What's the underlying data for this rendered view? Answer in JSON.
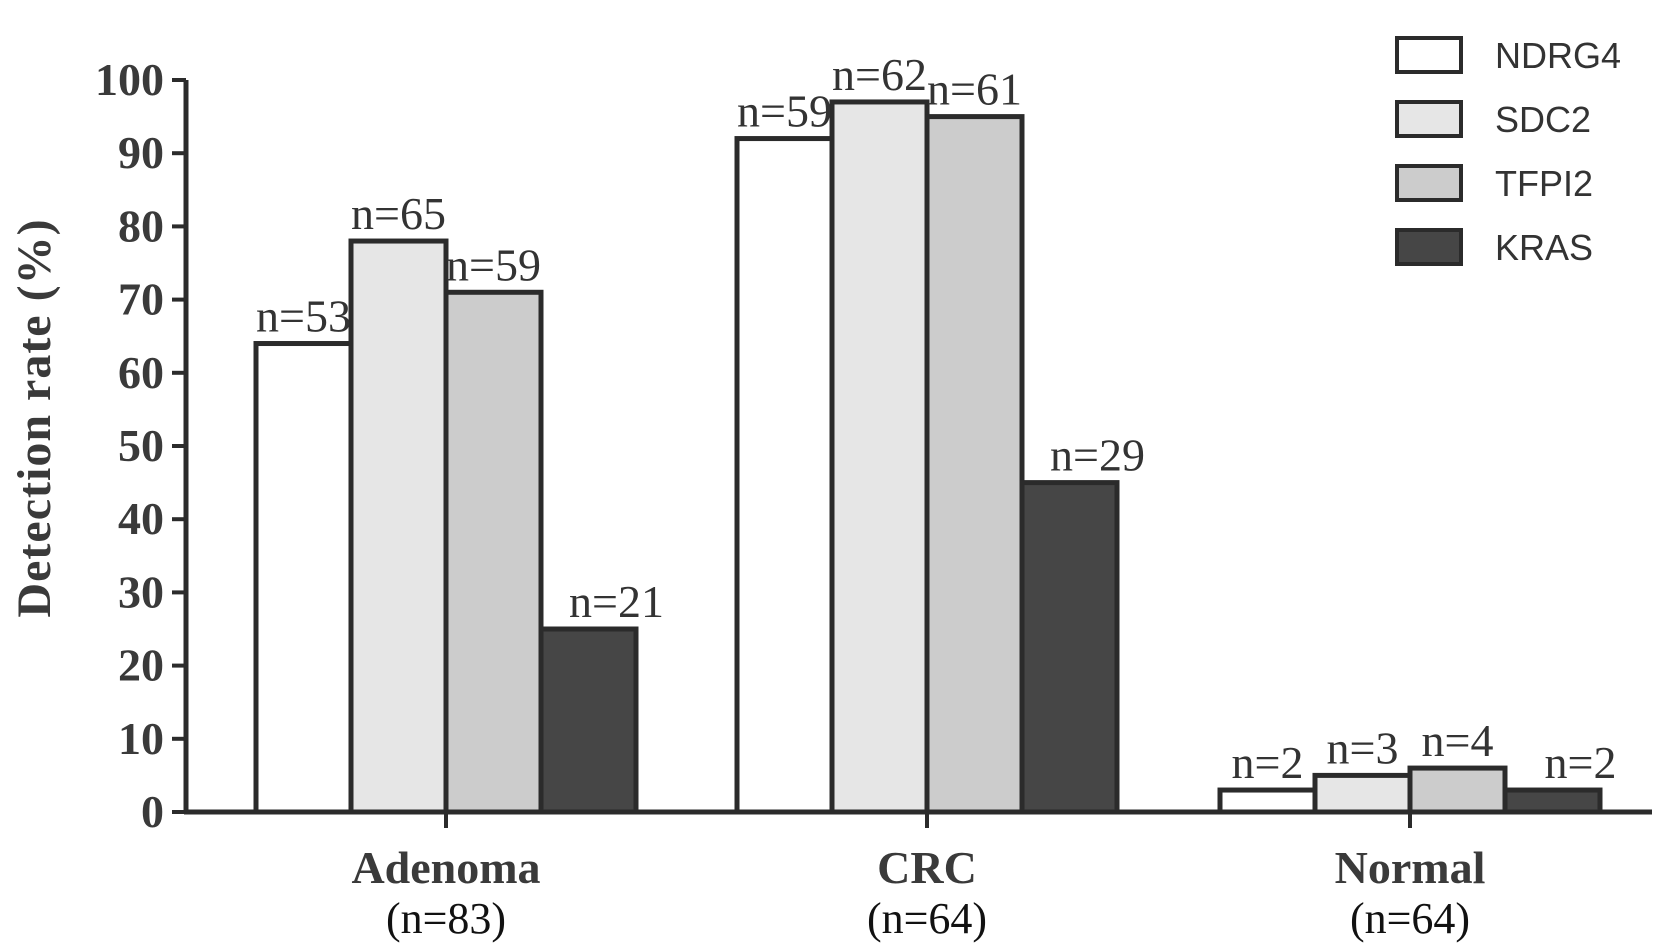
{
  "chart_data": {
    "type": "bar",
    "ylabel": "Detection rate (%)",
    "xlabel": "",
    "ylim": [
      0,
      100
    ],
    "yticks": [
      0,
      10,
      20,
      30,
      40,
      50,
      60,
      70,
      80,
      90,
      100
    ],
    "categories": [
      "Adenoma",
      "CRC",
      "Normal"
    ],
    "category_sublabels": [
      "(n=83)",
      "(n=64)",
      "(n=64)"
    ],
    "series": [
      {
        "name": "NDRG4",
        "color": "#ffffff",
        "values": [
          64,
          92,
          3
        ],
        "labels": [
          "n=53",
          "n=59",
          "n=2"
        ]
      },
      {
        "name": "SDC2",
        "color": "#e6e6e6",
        "values": [
          78,
          97,
          5
        ],
        "labels": [
          "n=65",
          "n=62",
          "n=3"
        ]
      },
      {
        "name": "TFPI2",
        "color": "#cccccc",
        "values": [
          71,
          95,
          6
        ],
        "labels": [
          "n=59",
          "n=61",
          "n=4"
        ]
      },
      {
        "name": "KRAS",
        "color": "#464646",
        "values": [
          25,
          45,
          3
        ],
        "labels": [
          "n=21",
          "n=29",
          "n=2"
        ]
      }
    ],
    "grid": false,
    "legend_position": "top-right"
  }
}
